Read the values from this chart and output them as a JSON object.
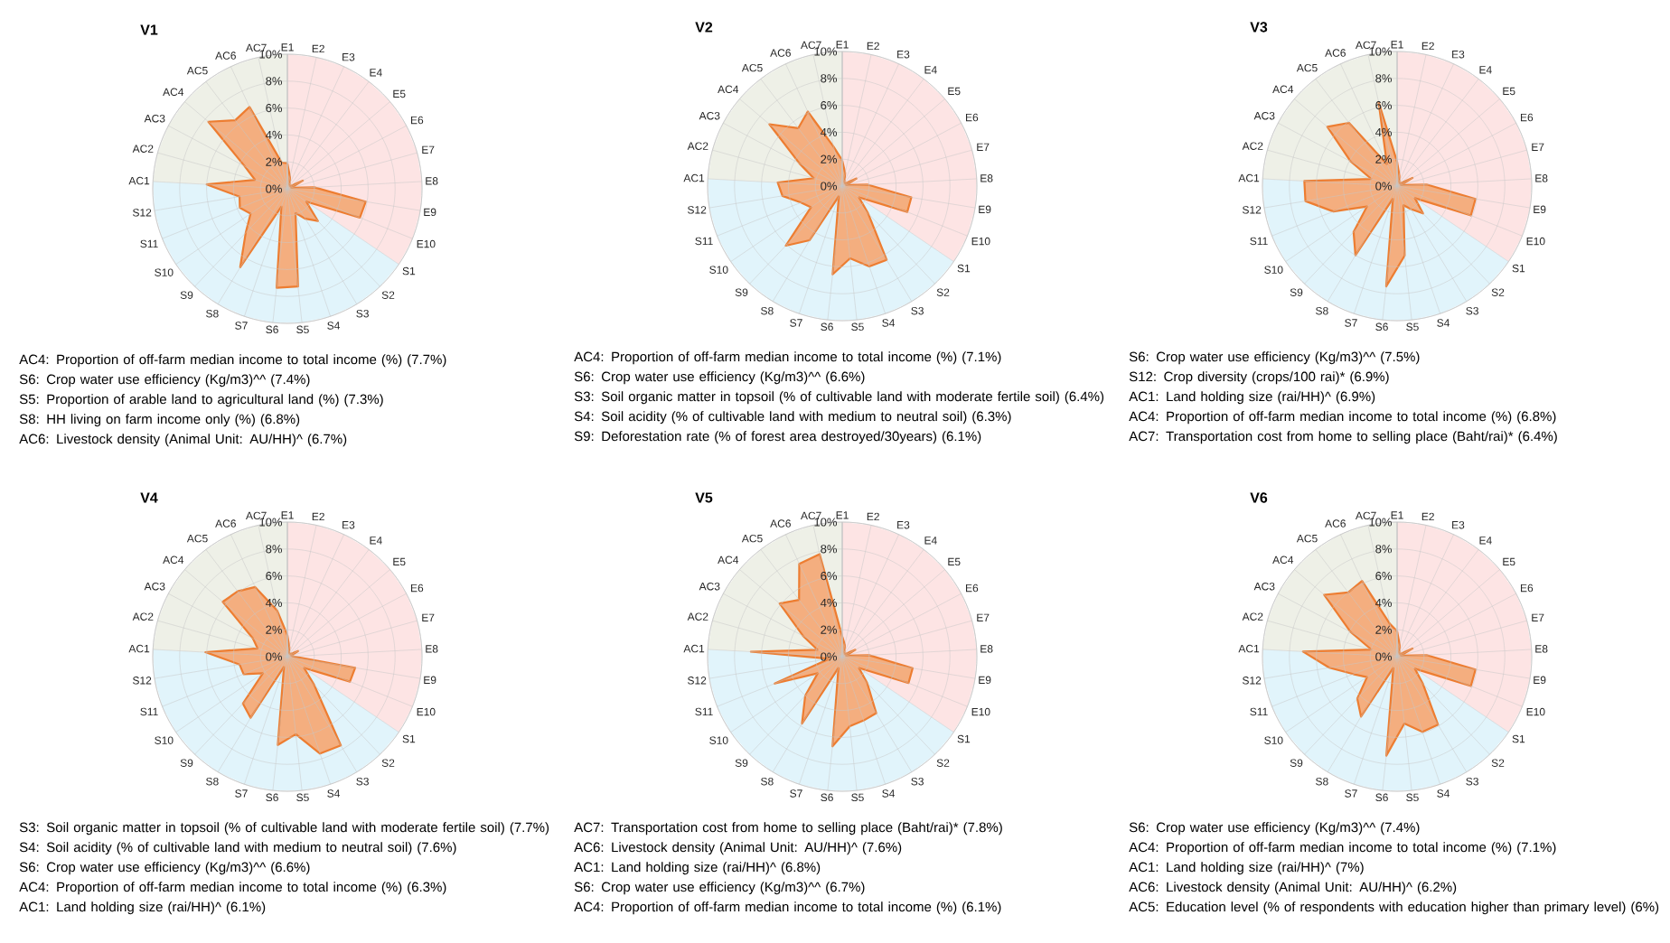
{
  "chart_data": [
    {
      "type": "radar",
      "title": "V1",
      "categories": [
        "E1",
        "E2",
        "E3",
        "E4",
        "E5",
        "E6",
        "E7",
        "E8",
        "E9",
        "E10",
        "S1",
        "S2",
        "S3",
        "S4",
        "S5",
        "S6",
        "S7",
        "S8",
        "S9",
        "S10",
        "S11",
        "S12",
        "AC1",
        "AC2",
        "AC3",
        "AC4",
        "AC5",
        "AC6",
        "AC7"
      ],
      "series": [
        {
          "color": "#ed7d31",
          "values": [
            1.9,
            0.9,
            0.4,
            0.3,
            0.3,
            1.3,
            0.3,
            2.0,
            5.9,
            5.8,
            1.7,
            3.3,
            2.6,
            1.9,
            7.3,
            7.4,
            1.4,
            6.8,
            4.5,
            3.3,
            3.8,
            3.6,
            6.0,
            2.5,
            3.6,
            7.7,
            6.4,
            6.7,
            2.0
          ]
        }
      ],
      "ylim": [
        0,
        10
      ],
      "yticks": [
        {
          "value": 0,
          "label": "0%"
        },
        {
          "value": 2,
          "label": "2%"
        },
        {
          "value": 4,
          "label": "4%"
        },
        {
          "value": 6,
          "label": "6%"
        },
        {
          "value": 8,
          "label": "8%"
        },
        {
          "value": 10,
          "label": "10%"
        }
      ],
      "grid": true,
      "annotations": [
        "AC4: Proportion of off-farm median income to total income (%) (7.7%)",
        "S6: Crop water use efficiency (Kg/m3)^^ (7.4%)",
        "S5: Proportion of arable land to agricultural land (%) (7.3%)",
        "S8: HH living on farm income only (%) (6.8%)",
        "AC6: Livestock density (Animal Unit: AU/HH)^ (6.7%)"
      ]
    },
    {
      "type": "radar",
      "title": "V2",
      "categories": [
        "E1",
        "E2",
        "E3",
        "E4",
        "E5",
        "E6",
        "E7",
        "E8",
        "E9",
        "E10",
        "S1",
        "S2",
        "S3",
        "S4",
        "S5",
        "S6",
        "S7",
        "S8",
        "S9",
        "S10",
        "S11",
        "S12",
        "AC1",
        "AC2",
        "AC3",
        "AC4",
        "AC5",
        "AC6",
        "AC7"
      ],
      "series": [
        {
          "color": "#ed7d31",
          "values": [
            1.9,
            1.0,
            0.4,
            0.3,
            0.3,
            1.2,
            0.3,
            1.9,
            5.2,
            5.2,
            1.5,
            2.8,
            6.4,
            6.3,
            5.4,
            6.6,
            0.8,
            4.7,
            6.1,
            2.8,
            3.3,
            4.5,
            4.8,
            2.2,
            3.6,
            7.1,
            5.4,
            6.1,
            3.0
          ]
        }
      ],
      "ylim": [
        0,
        10
      ],
      "yticks": [
        {
          "value": 0,
          "label": "0%"
        },
        {
          "value": 2,
          "label": "2%"
        },
        {
          "value": 4,
          "label": "4%"
        },
        {
          "value": 6,
          "label": "6%"
        },
        {
          "value": 8,
          "label": "8%"
        },
        {
          "value": 10,
          "label": "10%"
        }
      ],
      "grid": true,
      "annotations": [
        "AC4: Proportion of off-farm median income to total income (%) (7.1%)",
        "S6: Crop water use efficiency (Kg/m3)^^ (6.6%)",
        "S3: Soil organic matter in topsoil (% of cultivable land with moderate fertile soil) (6.4%)",
        "S4: Soil acidity (% of cultivable land with medium to neutral soil) (6.3%)",
        "S9: Deforestation rate (% of forest area destroyed/30years) (6.1%)"
      ]
    },
    {
      "type": "radar",
      "title": "V3",
      "categories": [
        "E1",
        "E2",
        "E3",
        "E4",
        "E5",
        "E6",
        "E7",
        "E8",
        "E9",
        "E10",
        "S1",
        "S2",
        "S3",
        "S4",
        "S5",
        "S6",
        "S7",
        "S8",
        "S9",
        "S10",
        "S11",
        "S12",
        "AC1",
        "AC2",
        "AC3",
        "AC4",
        "AC5",
        "AC6",
        "AC7"
      ],
      "series": [
        {
          "color": "#ed7d31",
          "values": [
            1.8,
            0.8,
            0.4,
            0.3,
            0.3,
            1.3,
            0.3,
            2.2,
            5.9,
            5.9,
            1.6,
            2.8,
            2.0,
            1.5,
            5.2,
            7.5,
            1.0,
            6.0,
            4.7,
            2.7,
            5.1,
            6.9,
            6.9,
            2.0,
            3.9,
            6.8,
            5.9,
            1.8,
            6.4
          ]
        }
      ],
      "ylim": [
        0,
        10
      ],
      "yticks": [
        {
          "value": 0,
          "label": "0%"
        },
        {
          "value": 2,
          "label": "2%"
        },
        {
          "value": 4,
          "label": "4%"
        },
        {
          "value": 6,
          "label": "6%"
        },
        {
          "value": 8,
          "label": "8%"
        },
        {
          "value": 10,
          "label": "10%"
        }
      ],
      "grid": true,
      "annotations": [
        "S6: Crop water use efficiency (Kg/m3)^^ (7.5%)",
        "S12: Crop diversity (crops/100 rai)* (6.9%)",
        "AC1: Land holding size (rai/HH)^ (6.9%)",
        "AC4: Proportion of off-farm median income to total income (%) (6.8%)",
        "AC7: Transportation cost from home to selling place (Baht/rai)* (6.4%)"
      ]
    },
    {
      "type": "radar",
      "title": "V4",
      "categories": [
        "E1",
        "E2",
        "E3",
        "E4",
        "E5",
        "E6",
        "E7",
        "E8",
        "E9",
        "E10",
        "S1",
        "S2",
        "S3",
        "S4",
        "S5",
        "S6",
        "S7",
        "S8",
        "S9",
        "S10",
        "S11",
        "S12",
        "AC1",
        "AC2",
        "AC3",
        "AC4",
        "AC5",
        "AC6",
        "AC7"
      ],
      "series": [
        {
          "color": "#ed7d31",
          "values": [
            1.6,
            0.7,
            0.3,
            0.3,
            0.3,
            0.9,
            0.3,
            0.4,
            5.1,
            5.0,
            1.5,
            2.9,
            7.7,
            7.6,
            5.8,
            6.6,
            0.8,
            5.3,
            4.8,
            2.2,
            3.5,
            3.6,
            6.1,
            2.3,
            2.9,
            6.3,
            6.1,
            5.7,
            3.5
          ]
        }
      ],
      "ylim": [
        0,
        10
      ],
      "yticks": [
        {
          "value": 0,
          "label": "0%"
        },
        {
          "value": 2,
          "label": "2%"
        },
        {
          "value": 4,
          "label": "4%"
        },
        {
          "value": 6,
          "label": "6%"
        },
        {
          "value": 8,
          "label": "8%"
        },
        {
          "value": 10,
          "label": "10%"
        }
      ],
      "grid": true,
      "annotations": [
        "S3: Soil organic matter in topsoil (% of cultivable land with moderate fertile soil) (7.7%)",
        "S4: Soil acidity (% of cultivable land with medium to neutral soil) (7.6%)",
        "S6: Crop water use efficiency (Kg/m3)^^ (6.6%)",
        "AC4: Proportion of off-farm median income to total income (%) (6.3%)",
        "AC1: Land holding size (rai/HH)^ (6.1%)"
      ]
    },
    {
      "type": "radar",
      "title": "V5",
      "categories": [
        "E1",
        "E2",
        "E3",
        "E4",
        "E5",
        "E6",
        "E7",
        "E8",
        "E9",
        "E10",
        "S1",
        "S2",
        "S3",
        "S4",
        "S5",
        "S6",
        "S7",
        "S8",
        "S9",
        "S10",
        "S11",
        "S12",
        "AC1",
        "AC2",
        "AC3",
        "AC4",
        "AC5",
        "AC6",
        "AC7"
      ],
      "series": [
        {
          "color": "#ed7d31",
          "values": [
            1.5,
            0.9,
            0.4,
            0.3,
            0.3,
            1.1,
            0.3,
            2.0,
            5.3,
            5.3,
            1.5,
            2.7,
            4.9,
            5.0,
            5.2,
            6.7,
            0.9,
            5.8,
            4.0,
            2.2,
            5.4,
            1.0,
            6.8,
            1.9,
            3.3,
            6.1,
            5.3,
            7.6,
            7.8
          ]
        }
      ],
      "ylim": [
        0,
        10
      ],
      "yticks": [
        {
          "value": 0,
          "label": "0%"
        },
        {
          "value": 2,
          "label": "2%"
        },
        {
          "value": 4,
          "label": "4%"
        },
        {
          "value": 6,
          "label": "6%"
        },
        {
          "value": 8,
          "label": "8%"
        },
        {
          "value": 10,
          "label": "10%"
        }
      ],
      "grid": true,
      "annotations": [
        "AC7: Transportation cost from home to selling place (Baht/rai)* (7.8%)",
        "AC6: Livestock density (Animal Unit: AU/HH)^ (7.6%)",
        "AC1: Land holding size (rai/HH)^ (6.8%)",
        "S6: Crop water use efficiency (Kg/m3)^^ (6.7%)",
        "AC4: Proportion of off-farm median income to total income (%) (6.1%)"
      ]
    },
    {
      "type": "radar",
      "title": "V6",
      "categories": [
        "E1",
        "E2",
        "E3",
        "E4",
        "E5",
        "E6",
        "E7",
        "E8",
        "E9",
        "E10",
        "S1",
        "S2",
        "S3",
        "S4",
        "S5",
        "S6",
        "S7",
        "S8",
        "S9",
        "S10",
        "S11",
        "S12",
        "AC1",
        "AC2",
        "AC3",
        "AC4",
        "AC5",
        "AC6",
        "AC7"
      ],
      "series": [
        {
          "color": "#ed7d31",
          "values": [
            1.9,
            0.9,
            0.4,
            0.3,
            0.3,
            1.3,
            0.3,
            2.2,
            5.9,
            5.9,
            1.6,
            2.8,
            5.9,
            5.9,
            5.0,
            7.4,
            0.9,
            5.2,
            4.3,
            2.7,
            3.5,
            5.1,
            7.0,
            2.0,
            3.9,
            7.1,
            6.0,
            6.2,
            2.5
          ]
        }
      ],
      "ylim": [
        0,
        10
      ],
      "yticks": [
        {
          "value": 0,
          "label": "0%"
        },
        {
          "value": 2,
          "label": "2%"
        },
        {
          "value": 4,
          "label": "4%"
        },
        {
          "value": 6,
          "label": "6%"
        },
        {
          "value": 8,
          "label": "8%"
        },
        {
          "value": 10,
          "label": "10%"
        }
      ],
      "grid": true,
      "annotations": [
        "S6: Crop water use efficiency (Kg/m3)^^ (7.4%)",
        "AC4: Proportion of off-farm median income to total income (%) (7.1%)",
        "AC1: Land holding size (rai/HH)^ (7%)",
        "AC6: Livestock density (Animal Unit: AU/HH)^ (6.2%)",
        "AC5: Education level (% of respondents with education higher than primary level) (6%)"
      ]
    }
  ]
}
